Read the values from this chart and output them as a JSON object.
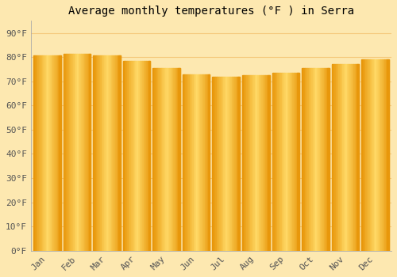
{
  "title": "Average monthly temperatures (°F ) in Serra",
  "months": [
    "Jan",
    "Feb",
    "Mar",
    "Apr",
    "May",
    "Jun",
    "Jul",
    "Aug",
    "Sep",
    "Oct",
    "Nov",
    "Dec"
  ],
  "values": [
    80.6,
    81.5,
    80.8,
    78.3,
    75.4,
    72.9,
    71.8,
    72.5,
    73.6,
    75.4,
    77.0,
    79.0
  ],
  "bar_color_center": "#FFD966",
  "bar_color_edge": "#E8960A",
  "background_color": "#FDE8B0",
  "plot_bg_color": "#FDE8B0",
  "grid_color": "#F5C87A",
  "ytick_labels": [
    "0°F",
    "10°F",
    "20°F",
    "30°F",
    "40°F",
    "50°F",
    "60°F",
    "70°F",
    "80°F",
    "90°F"
  ],
  "ytick_values": [
    0,
    10,
    20,
    30,
    40,
    50,
    60,
    70,
    80,
    90
  ],
  "ylim": [
    0,
    95
  ],
  "title_fontsize": 10,
  "tick_fontsize": 8,
  "font_family": "monospace",
  "bar_width": 0.92
}
